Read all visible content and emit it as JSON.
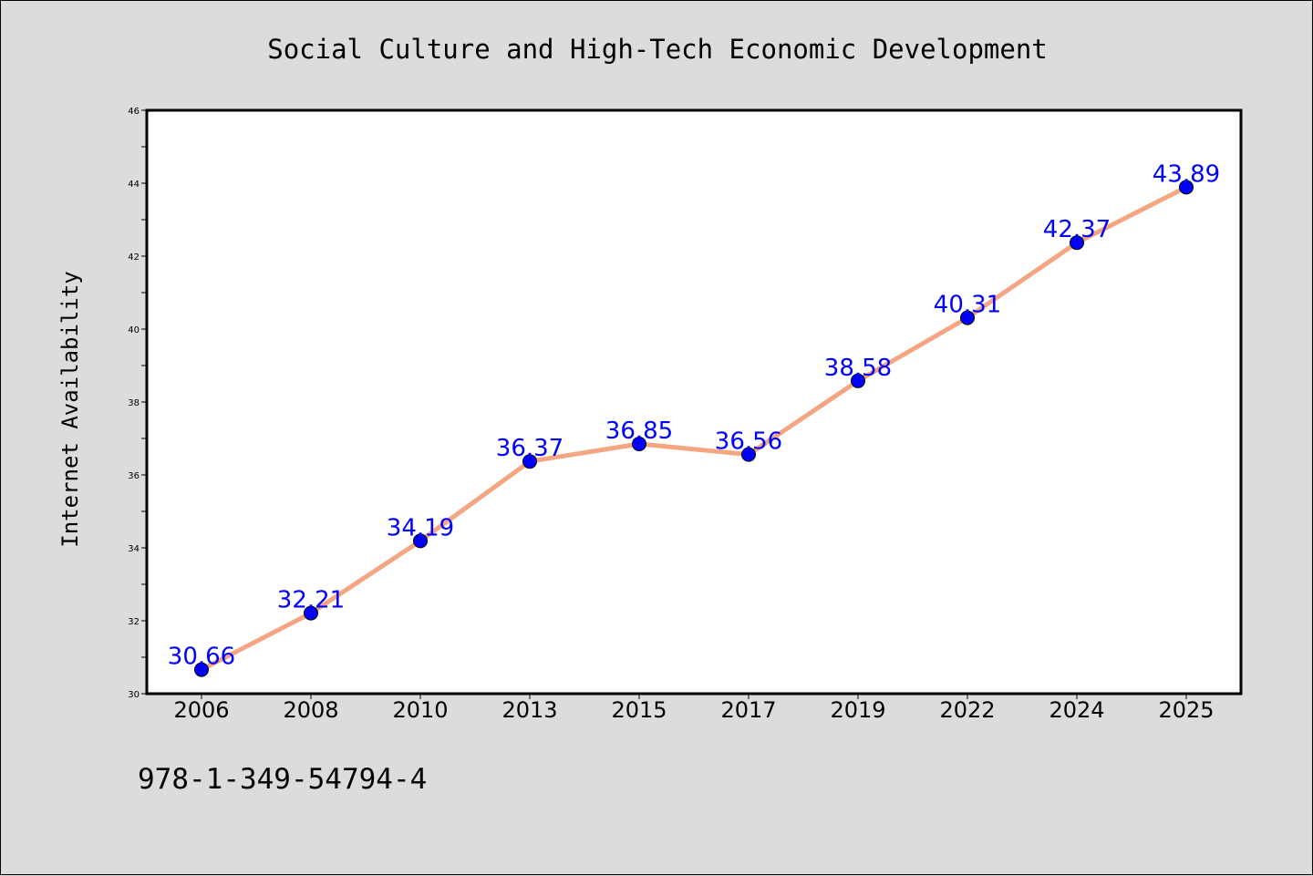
{
  "chart_data": {
    "type": "line",
    "title": "Social Culture and High-Tech Economic Development",
    "xlabel": "",
    "ylabel": "Internet Availability",
    "categories": [
      "2006",
      "2008",
      "2010",
      "2013",
      "2015",
      "2017",
      "2019",
      "2022",
      "2024",
      "2025"
    ],
    "series": [
      {
        "values": [
          30.66,
          32.21,
          34.19,
          36.37,
          36.85,
          36.56,
          38.58,
          40.31,
          42.37,
          43.89
        ],
        "labels": [
          "30.66",
          "32.21",
          "34.19",
          "36.37",
          "36.85",
          "36.56",
          "38.58",
          "40.31",
          "42.37",
          "43.89"
        ]
      }
    ],
    "ylim": [
      30,
      46
    ],
    "yticks": [
      "30",
      "32",
      "34",
      "36",
      "38",
      "40",
      "42",
      "44",
      "46"
    ],
    "grid": false,
    "line_color": "#f4a582",
    "marker_color": "#0000ff",
    "label_color": "#0000ff",
    "annotation": "978-1-349-54794-4"
  }
}
